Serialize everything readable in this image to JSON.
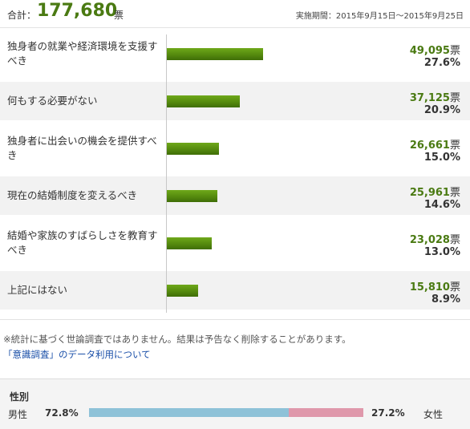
{
  "header": {
    "total_label": "合計：",
    "total_value": "177,680",
    "total_unit": "票",
    "period": "実施期間：2015年9月15日～2015年9月25日"
  },
  "chart_data": {
    "type": "bar",
    "orientation": "horizontal",
    "unit": "票",
    "categories": [
      "独身者の就業や経済環境を支援すべき",
      "何もする必要がない",
      "独身者に出会いの機会を提供すべき",
      "現在の結婚制度を変えるべき",
      "結婚や家族のすばらしさを教育すべき",
      "上記にはない"
    ],
    "values": [
      49095,
      37125,
      26661,
      25961,
      23028,
      15810
    ],
    "value_labels": [
      "49,095",
      "37,125",
      "26,661",
      "25,961",
      "23,028",
      "15,810"
    ],
    "percents": [
      "27.6%",
      "20.9%",
      "15.0%",
      "14.6%",
      "13.0%",
      "8.9%"
    ],
    "xlim": [
      0,
      120000
    ],
    "bar_color": "#5a8f0f"
  },
  "footer": {
    "note": "※統計に基づく世論調査ではありません。結果は予告なく削除することがあります。",
    "link_text": "「意識調査」のデータ利用について"
  },
  "gender": {
    "title": "性別",
    "male_label": "男性",
    "male_percent": "72.8%",
    "male_value": 72.8,
    "female_label": "女性",
    "female_percent": "27.2%",
    "female_value": 27.2,
    "male_color": "#8ec2d8",
    "female_color": "#df98ab"
  }
}
